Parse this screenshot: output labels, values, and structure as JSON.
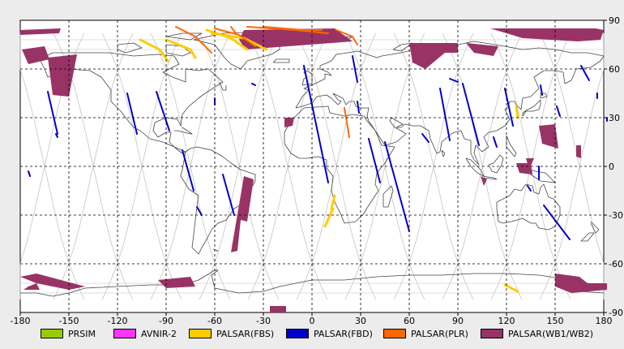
{
  "chart_data": {
    "type": "map",
    "xlim": [
      -180,
      180
    ],
    "ylim": [
      -90,
      90
    ],
    "x_ticks": [
      -180,
      -150,
      -120,
      -90,
      -60,
      -30,
      0,
      30,
      60,
      90,
      120,
      150,
      180
    ],
    "y_ticks": [
      90,
      60,
      30,
      0,
      -30,
      -60,
      -90
    ],
    "grid": true,
    "legend": [
      {
        "label": "PRSIM",
        "color": "#99cc00"
      },
      {
        "label": "AVNIR-2",
        "color": "#ff33ff"
      },
      {
        "label": "PALSAR(FBS)",
        "color": "#ffcc00"
      },
      {
        "label": "PALSAR(FBD)",
        "color": "#0000cc"
      },
      {
        "label": "PALSAR(PLR)",
        "color": "#ff6600"
      },
      {
        "label": "PALSAR(WB1/WB2)",
        "color": "#993366"
      }
    ],
    "fbd_strips": [
      [
        [
          -163,
          46
        ],
        [
          -157,
          20
        ]
      ],
      [
        [
          -158,
          20
        ],
        [
          -157,
          18
        ]
      ],
      [
        [
          -114,
          45
        ],
        [
          -108,
          20
        ]
      ],
      [
        [
          -96,
          46
        ],
        [
          -88,
          22
        ]
      ],
      [
        [
          -80,
          10
        ],
        [
          -73,
          -15
        ]
      ],
      [
        [
          -71,
          -25
        ],
        [
          -68,
          -30
        ]
      ],
      [
        [
          -55,
          -5
        ],
        [
          -48,
          -30
        ]
      ],
      [
        [
          -60,
          42
        ],
        [
          -60,
          38
        ]
      ],
      [
        [
          -175,
          -3
        ],
        [
          -174,
          -6
        ]
      ],
      [
        [
          -5,
          62
        ],
        [
          10,
          -10
        ]
      ],
      [
        [
          25,
          68
        ],
        [
          28,
          52
        ]
      ],
      [
        [
          28,
          40
        ],
        [
          29,
          33
        ]
      ],
      [
        [
          35,
          17
        ],
        [
          42,
          -10
        ]
      ],
      [
        [
          45,
          15
        ],
        [
          60,
          -40
        ]
      ],
      [
        [
          68,
          20
        ],
        [
          72,
          15
        ]
      ],
      [
        [
          79,
          48
        ],
        [
          85,
          16
        ]
      ],
      [
        [
          93,
          51
        ],
        [
          103,
          13
        ]
      ],
      [
        [
          119,
          48
        ],
        [
          124,
          25
        ]
      ],
      [
        [
          141,
          50
        ],
        [
          142,
          44
        ]
      ],
      [
        [
          112,
          18
        ],
        [
          114,
          12
        ]
      ],
      [
        [
          140,
          0
        ],
        [
          140,
          -8
        ]
      ],
      [
        [
          133,
          -12
        ],
        [
          135,
          -15
        ]
      ],
      [
        [
          143,
          -24
        ],
        [
          159,
          -45
        ]
      ],
      [
        [
          151,
          37
        ],
        [
          153,
          31
        ]
      ],
      [
        [
          166,
          62
        ],
        [
          171,
          53
        ]
      ],
      [
        [
          176,
          45
        ],
        [
          176,
          42
        ]
      ],
      [
        [
          182,
          30
        ],
        [
          182,
          28
        ]
      ],
      [
        [
          -37,
          51
        ],
        [
          -35,
          50
        ]
      ],
      [
        [
          85,
          54
        ],
        [
          90,
          52
        ]
      ]
    ],
    "fbs_strips": [
      [
        [
          -106,
          78
        ],
        [
          -94,
          72
        ],
        [
          -89,
          65
        ]
      ],
      [
        [
          -90,
          78
        ],
        [
          -75,
          72
        ],
        [
          -72,
          67
        ]
      ],
      [
        [
          -65,
          84
        ],
        [
          -50,
          79
        ],
        [
          -40,
          72
        ]
      ],
      [
        [
          -62,
          82
        ],
        [
          -42,
          79
        ],
        [
          -28,
          72
        ]
      ],
      [
        [
          14,
          -18
        ],
        [
          12,
          -26
        ]
      ],
      [
        [
          13,
          -26
        ],
        [
          8,
          -37
        ]
      ],
      [
        [
          126,
          37
        ],
        [
          127,
          30
        ]
      ],
      [
        [
          119,
          -73
        ],
        [
          127,
          -77
        ]
      ]
    ],
    "plr_strips": [
      [
        [
          -84,
          86
        ],
        [
          -72,
          80
        ],
        [
          -62,
          70
        ]
      ],
      [
        [
          -60,
          85
        ],
        [
          -45,
          81
        ],
        [
          -35,
          74
        ]
      ],
      [
        [
          -40,
          86
        ],
        [
          -10,
          84
        ],
        [
          10,
          82
        ]
      ],
      [
        [
          -30,
          86
        ],
        [
          -5,
          84
        ],
        [
          6,
          84
        ]
      ],
      [
        [
          15,
          84
        ],
        [
          25,
          80
        ],
        [
          28,
          75
        ]
      ],
      [
        [
          20,
          36
        ],
        [
          23,
          18
        ]
      ],
      [
        [
          -50,
          86
        ],
        [
          -47,
          82
        ]
      ]
    ],
    "wb_polygons": [
      [
        [
          -180,
          84
        ],
        [
          -155,
          85
        ],
        [
          -156,
          82
        ],
        [
          -180,
          81
        ]
      ],
      [
        [
          -179,
          72
        ],
        [
          -165,
          74
        ],
        [
          -162,
          66
        ],
        [
          -175,
          63
        ]
      ],
      [
        [
          -163,
          67
        ],
        [
          -145,
          69
        ],
        [
          -150,
          43
        ],
        [
          -160,
          44
        ]
      ],
      [
        [
          -158,
          56
        ],
        [
          -154,
          58
        ],
        [
          -152,
          54
        ]
      ],
      [
        [
          -42,
          84
        ],
        [
          14,
          85
        ],
        [
          25,
          77
        ],
        [
          -41,
          72
        ],
        [
          -45,
          78
        ]
      ],
      [
        [
          -17,
          30
        ],
        [
          -11,
          30
        ],
        [
          -12,
          25
        ],
        [
          -17,
          24
        ]
      ],
      [
        [
          -42,
          -6
        ],
        [
          -36,
          -8
        ],
        [
          -40,
          -34
        ],
        [
          -44,
          -33
        ],
        [
          -46,
          -52
        ],
        [
          -50,
          -53
        ]
      ],
      [
        [
          110,
          85
        ],
        [
          175,
          85
        ],
        [
          180,
          84
        ],
        [
          178,
          78
        ],
        [
          164,
          77
        ],
        [
          130,
          79
        ]
      ],
      [
        [
          60,
          76
        ],
        [
          90,
          76
        ],
        [
          90,
          70
        ],
        [
          82,
          70
        ],
        [
          70,
          60
        ],
        [
          62,
          64
        ]
      ],
      [
        [
          95,
          76
        ],
        [
          115,
          74
        ],
        [
          112,
          68
        ],
        [
          100,
          70
        ]
      ],
      [
        [
          140,
          25
        ],
        [
          150,
          26
        ],
        [
          152,
          11
        ],
        [
          142,
          14
        ]
      ],
      [
        [
          163,
          13
        ],
        [
          166,
          13
        ],
        [
          166,
          5
        ],
        [
          163,
          6
        ]
      ],
      [
        [
          126,
          2
        ],
        [
          135,
          2
        ],
        [
          136,
          -5
        ],
        [
          128,
          -4
        ]
      ],
      [
        [
          132,
          5
        ],
        [
          137,
          5
        ],
        [
          134,
          -2
        ]
      ],
      [
        [
          104,
          -6
        ],
        [
          108,
          -8
        ],
        [
          106,
          -12
        ]
      ],
      [
        [
          -180,
          -68
        ],
        [
          -170,
          -72
        ],
        [
          -150,
          -76
        ],
        [
          -140,
          -74
        ],
        [
          -170,
          -66
        ]
      ],
      [
        [
          -95,
          -70
        ],
        [
          -75,
          -68
        ],
        [
          -72,
          -74
        ],
        [
          -90,
          -75
        ]
      ],
      [
        [
          -26,
          -86
        ],
        [
          -16,
          -86
        ],
        [
          -16,
          -90
        ],
        [
          -26,
          -90
        ]
      ],
      [
        [
          150,
          -66
        ],
        [
          165,
          -68
        ],
        [
          170,
          -72
        ],
        [
          182,
          -72
        ],
        [
          182,
          -76
        ],
        [
          160,
          -78
        ],
        [
          150,
          -74
        ]
      ],
      [
        [
          -175,
          -74
        ],
        [
          -170,
          -72
        ],
        [
          -168,
          -76
        ],
        [
          -178,
          -76
        ]
      ]
    ]
  }
}
